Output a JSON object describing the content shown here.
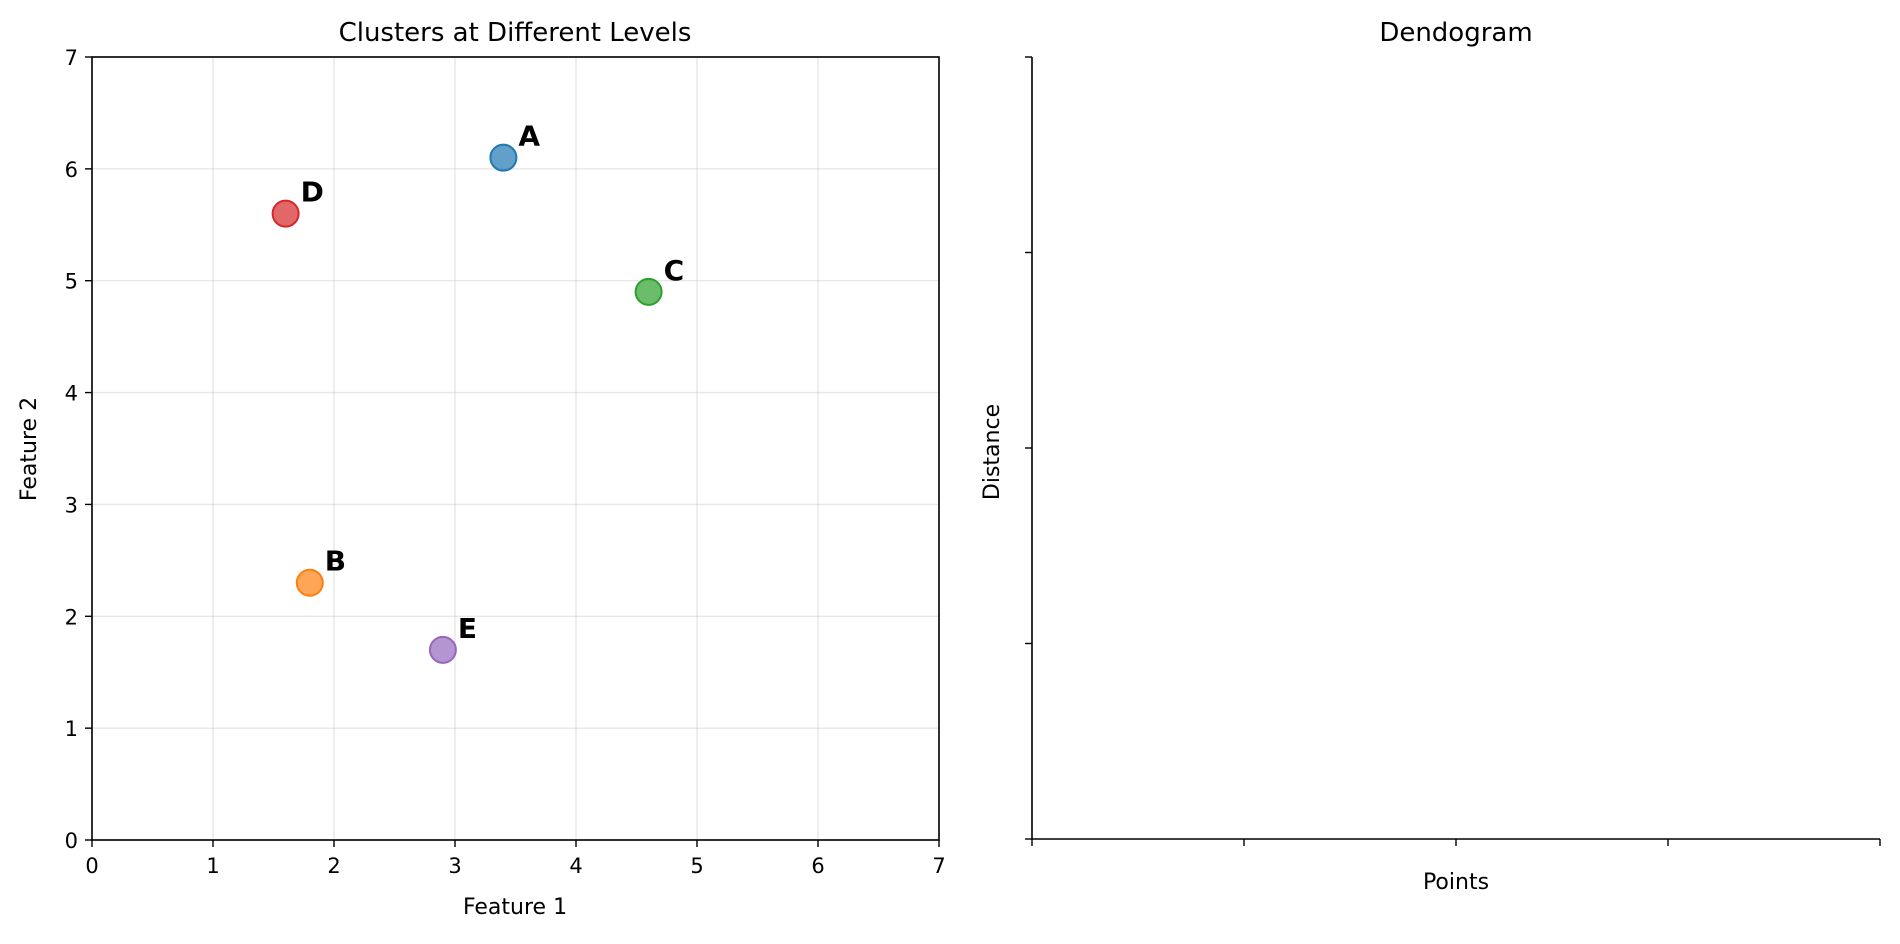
{
  "chart_data": [
    {
      "type": "scatter",
      "title": "Clusters at Different Levels",
      "xlabel": "Feature 1",
      "ylabel": "Feature 2",
      "xlim": [
        0,
        7
      ],
      "ylim": [
        0,
        7
      ],
      "xticks": [
        "0",
        "1",
        "2",
        "3",
        "4",
        "5",
        "6",
        "7"
      ],
      "yticks": [
        "0",
        "1",
        "2",
        "3",
        "4",
        "5",
        "6",
        "7"
      ],
      "grid": true,
      "points": [
        {
          "label": "A",
          "x": 3.4,
          "y": 6.1,
          "color": "#1f77b4"
        },
        {
          "label": "B",
          "x": 1.8,
          "y": 2.3,
          "color": "#ff7f0e"
        },
        {
          "label": "C",
          "x": 4.6,
          "y": 4.9,
          "color": "#2ca02c"
        },
        {
          "label": "D",
          "x": 1.6,
          "y": 5.6,
          "color": "#d62728"
        },
        {
          "label": "E",
          "x": 2.9,
          "y": 1.7,
          "color": "#9467bd"
        }
      ]
    },
    {
      "type": "dendrogram",
      "title": "Dendogram",
      "xlabel": "Points",
      "ylabel": "Distance",
      "grid": false,
      "xtick_count": 5,
      "ytick_count": 5,
      "tick_labels_visible": false,
      "data": []
    }
  ]
}
